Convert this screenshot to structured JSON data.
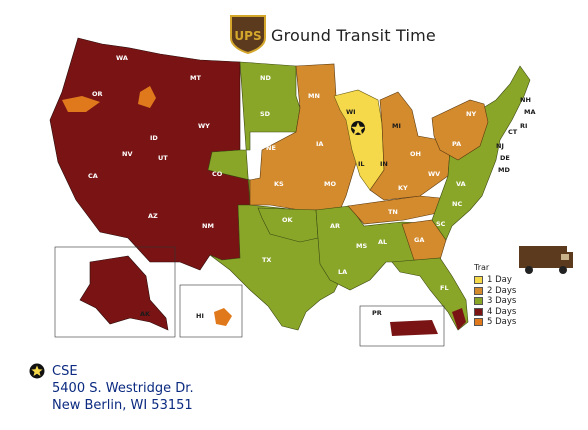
{
  "header": {
    "title": "Ground Transit Time",
    "logo_text": "UPS"
  },
  "colors": {
    "day1": "#f5d94a",
    "day2": "#d48b2e",
    "day3": "#8aa629",
    "day4": "#7a1414",
    "day5": "#e0791c",
    "truck": "#5b3a1e",
    "address_text": "#0b2a80"
  },
  "legend": {
    "title": "Trar",
    "items": [
      {
        "label": "1 Day",
        "color": "#f5d94a"
      },
      {
        "label": "2 Days",
        "color": "#d48b2e"
      },
      {
        "label": "3 Days",
        "color": "#8aa629"
      },
      {
        "label": "4 Days",
        "color": "#7a1414"
      },
      {
        "label": "5 Days",
        "color": "#e0791c"
      }
    ]
  },
  "origin": {
    "name": "CSE",
    "street": "5400 S. Westridge Dr.",
    "city_line": "New Berlin, WI  53151"
  },
  "states": {
    "WA": "WA",
    "OR": "OR",
    "CA": "CA",
    "NV": "NV",
    "ID": "ID",
    "MT": "MT",
    "WY": "WY",
    "UT": "UT",
    "AZ": "AZ",
    "NM": "NM",
    "CO": "CO",
    "TX": "TX",
    "OK": "OK",
    "KS": "KS",
    "NE": "NE",
    "SD": "SD",
    "ND": "ND",
    "MN": "MN",
    "IA": "IA",
    "MO": "MO",
    "AR": "AR",
    "LA": "LA",
    "MS": "MS",
    "AL": "AL",
    "GA": "GA",
    "FL": "FL",
    "TN": "TN",
    "KY": "KY",
    "IL": "IL",
    "IN": "IN",
    "OH": "OH",
    "MI": "MI",
    "WI": "WI",
    "WV": "WV",
    "VA": "VA",
    "NC": "NC",
    "SC": "SC",
    "PA": "PA",
    "NY": "NY",
    "NJ": "NJ",
    "DE": "DE",
    "MD": "MD",
    "CT": "CT",
    "RI": "RI",
    "MA": "MA",
    "NH": "NH",
    "AK": "AK",
    "HI": "HI",
    "PR": "PR"
  }
}
